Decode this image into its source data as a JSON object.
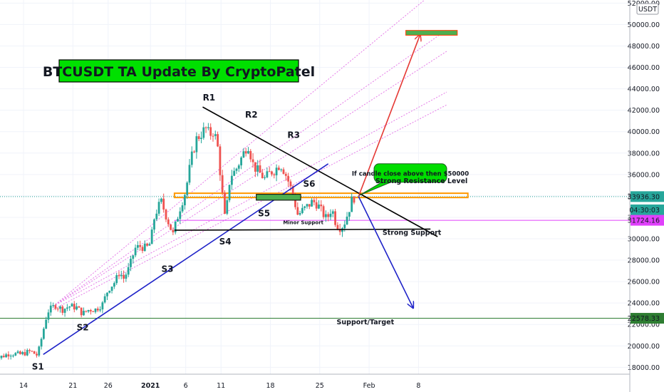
{
  "title": "BTCUSDT TA Update By CryptoPatel",
  "currency_label": "USDT",
  "price_axis": {
    "ticks": [
      "18000.00",
      "20000.00",
      "22000.00",
      "24000.00",
      "26000.00",
      "28000.00",
      "30000.00",
      "32000.00",
      "34000.00",
      "36000.00",
      "38000.00",
      "40000.00",
      "42000.00",
      "44000.00",
      "46000.00",
      "48000.00",
      "50000.00",
      "52000.00"
    ],
    "tags": [
      {
        "name": "current-price-tag",
        "text": "33936.30",
        "price": 33936.3,
        "color": "#26a69a"
      },
      {
        "name": "countdown-tag",
        "text": "04:30:03",
        "price": 32700,
        "color": "#26a69a"
      },
      {
        "name": "minor-support-tag",
        "text": "31724.16",
        "price": 31724.16,
        "color": "#e040fb"
      },
      {
        "name": "target-tag",
        "text": "22578.33",
        "price": 22578.33,
        "color": "#2e7d32"
      }
    ]
  },
  "time_axis": {
    "ticks": [
      {
        "label": "14",
        "day": 0
      },
      {
        "label": "21",
        "day": 7
      },
      {
        "label": "26",
        "day": 12
      },
      {
        "label": "2021",
        "day": 18
      },
      {
        "label": "6",
        "day": 23
      },
      {
        "label": "11",
        "day": 28
      },
      {
        "label": "18",
        "day": 35
      },
      {
        "label": "25",
        "day": 42
      },
      {
        "label": "Feb",
        "day": 49
      },
      {
        "label": "8",
        "day": 56
      }
    ]
  },
  "labels": {
    "s1": "S1",
    "s2": "S2",
    "s3": "S3",
    "s4": "S4",
    "s5": "S5",
    "s6": "S6",
    "r1": "R1",
    "r2": "R2",
    "r3": "R3",
    "strong_resistance": "Strong Resistance Level",
    "strong_support": "Strong Support",
    "minor_support": "Minor Support",
    "support_target": "Support/Target",
    "callout": "If candle close above then $50000"
  },
  "colors": {
    "up": "#26a69a",
    "down": "#ef5350",
    "resistance": "#ff9800",
    "minor": "#e040fb",
    "target": "#2e7d32",
    "trend": "#1e22c8",
    "bull_arrow": "#e53935",
    "bear_arrow": "#1e22c8",
    "title_bg": "#00e000",
    "zone_green": "#4caf50",
    "callout_bg": "#00dd00",
    "fan": "#e57ce8"
  },
  "chart_data": {
    "type": "candlestick",
    "symbol": "BTCUSDT",
    "timeframe": "4h",
    "x_unit": "days since the date labelled 14 (December 2020)",
    "price_range": [
      16800,
      53000
    ],
    "anchors": [
      [
        -4.8,
        18500
      ],
      [
        -3.5,
        18900
      ],
      [
        -2,
        19300
      ],
      [
        -0.5,
        19200
      ],
      [
        1,
        19500
      ],
      [
        2,
        19100
      ],
      [
        3.4,
        23200
      ],
      [
        4.5,
        23800
      ],
      [
        5.5,
        23400
      ],
      [
        6.5,
        23700
      ],
      [
        7.5,
        23600
      ],
      [
        8.4,
        23000
      ],
      [
        9.3,
        23400
      ],
      [
        10.2,
        23400
      ],
      [
        11.2,
        23900
      ],
      [
        12,
        25300
      ],
      [
        13,
        26000
      ],
      [
        13.6,
        26900
      ],
      [
        14.2,
        26300
      ],
      [
        15,
        27300
      ],
      [
        15.8,
        29100
      ],
      [
        16.6,
        29300
      ],
      [
        17.4,
        29100
      ],
      [
        18,
        29600
      ],
      [
        18.6,
        32200
      ],
      [
        19.5,
        33500
      ],
      [
        20.4,
        31800
      ],
      [
        21.2,
        30400
      ],
      [
        22.1,
        32700
      ],
      [
        23,
        34500
      ],
      [
        23.8,
        37500
      ],
      [
        24.5,
        39300
      ],
      [
        25.2,
        39800
      ],
      [
        25.8,
        40300
      ],
      [
        26.4,
        39700
      ],
      [
        27,
        40100
      ],
      [
        27.6,
        38300
      ],
      [
        28,
        35300
      ],
      [
        28.6,
        31600
      ],
      [
        29.3,
        35900
      ],
      [
        30,
        36300
      ],
      [
        31,
        37700
      ],
      [
        31.8,
        38900
      ],
      [
        32.6,
        36800
      ],
      [
        33.4,
        36200
      ],
      [
        34.2,
        35600
      ],
      [
        35,
        36200
      ],
      [
        35.6,
        36400
      ],
      [
        36.4,
        37000
      ],
      [
        37,
        36300
      ],
      [
        37.7,
        35100
      ],
      [
        38.3,
        33800
      ],
      [
        38.9,
        32200
      ],
      [
        39.5,
        32600
      ],
      [
        40.2,
        33000
      ],
      [
        41,
        33500
      ],
      [
        41.7,
        33200
      ],
      [
        42.3,
        32500
      ],
      [
        43,
        31800
      ],
      [
        43.7,
        32900
      ],
      [
        44.3,
        31400
      ],
      [
        45,
        31000
      ],
      [
        45.5,
        31500
      ],
      [
        46,
        32400
      ],
      [
        46.6,
        33700
      ],
      [
        47,
        33900
      ]
    ],
    "levels": [
      {
        "name": "Strong Resistance Level",
        "price": 34050
      },
      {
        "name": "Strong Support",
        "price": 30800
      },
      {
        "name": "Minor Support",
        "price": 31724.16
      },
      {
        "name": "Support/Target",
        "price": 22578.33
      },
      {
        "name": "Target zone",
        "price": 49200
      }
    ],
    "trendlines": [
      {
        "name": "descending resistance",
        "from": [
          25.4,
          42300
        ],
        "to": [
          58.7,
          30200
        ]
      },
      {
        "name": "ascending support",
        "from": [
          2.8,
          19200
        ],
        "to": [
          43.2,
          37000
        ]
      },
      {
        "name": "strong support line",
        "from": [
          21.4,
          30800
        ],
        "to": [
          57.7,
          30900
        ]
      }
    ],
    "projections": [
      {
        "name": "bullish",
        "from": [
          47.5,
          33950
        ],
        "to": [
          56.2,
          49000
        ]
      },
      {
        "name": "bearish",
        "from": [
          47.5,
          33950
        ],
        "to": [
          55.2,
          23600
        ]
      }
    ],
    "points": [
      {
        "label": "S1",
        "day": 2.2,
        "price": 19600
      },
      {
        "label": "S2",
        "day": 8.4,
        "price": 22300
      },
      {
        "label": "S3",
        "day": 20.4,
        "price": 27900
      },
      {
        "label": "S4",
        "day": 28.6,
        "price": 30400
      },
      {
        "label": "S5",
        "day": 34.1,
        "price": 32900
      },
      {
        "label": "S6",
        "day": 40.5,
        "price": 35600
      },
      {
        "label": "R1",
        "day": 26.3,
        "price": 42300
      },
      {
        "label": "R2",
        "day": 32.3,
        "price": 40700
      },
      {
        "label": "R3",
        "day": 38.3,
        "price": 38800
      }
    ]
  }
}
